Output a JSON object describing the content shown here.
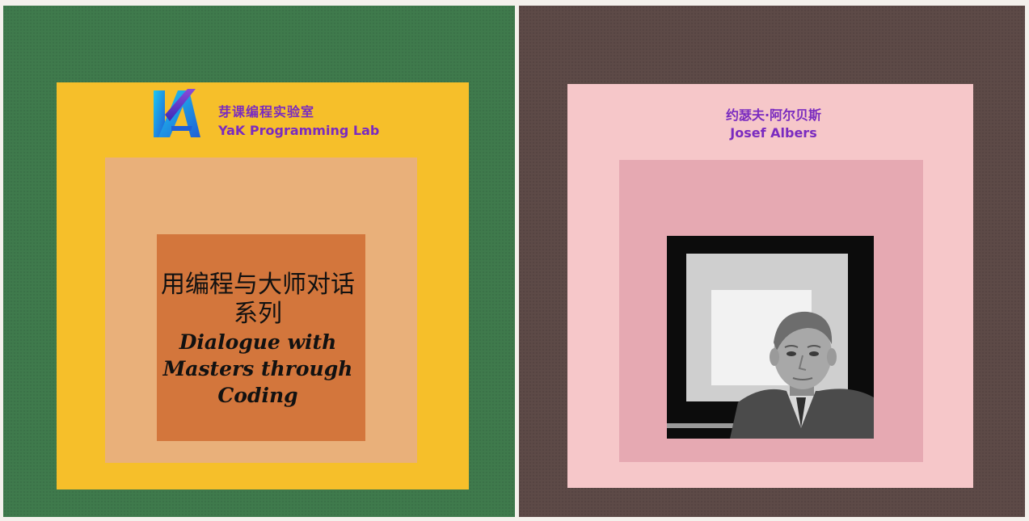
{
  "lab": {
    "name_cn": "芽课编程实验室",
    "name_en": "YaK Programming Lab"
  },
  "series": {
    "title_cn": "用编程与大师对话系列",
    "title_en": "Dialogue with Masters through Coding"
  },
  "artist": {
    "name_cn": "约瑟夫·阿尔贝斯",
    "name_en": "Josef Albers"
  },
  "colors": {
    "left_bg": "#3f7a4c",
    "left_square_1": "#f6bf2a",
    "left_square_2": "#e9b07a",
    "left_square_3": "#d3763c",
    "right_bg": "#5d4a47",
    "right_square_1": "#f6c7c9",
    "right_square_2": "#e6a9b2",
    "accent_text": "#7a2bc0"
  },
  "icons": [
    "yak-logo-icon",
    "artist-portrait-photo"
  ]
}
